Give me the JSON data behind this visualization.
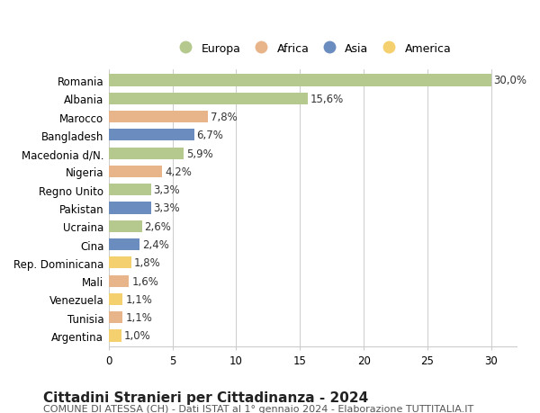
{
  "categories": [
    "Romania",
    "Albania",
    "Marocco",
    "Bangladesh",
    "Macedonia d/N.",
    "Nigeria",
    "Regno Unito",
    "Pakistan",
    "Ucraina",
    "Cina",
    "Rep. Dominicana",
    "Mali",
    "Venezuela",
    "Tunisia",
    "Argentina"
  ],
  "values": [
    30.0,
    15.6,
    7.8,
    6.7,
    5.9,
    4.2,
    3.3,
    3.3,
    2.6,
    2.4,
    1.8,
    1.6,
    1.1,
    1.1,
    1.0
  ],
  "labels": [
    "30,0%",
    "15,6%",
    "7,8%",
    "6,7%",
    "5,9%",
    "4,2%",
    "3,3%",
    "3,3%",
    "2,6%",
    "2,4%",
    "1,8%",
    "1,6%",
    "1,1%",
    "1,1%",
    "1,0%"
  ],
  "continents": [
    "Europa",
    "Europa",
    "Africa",
    "Asia",
    "Europa",
    "Africa",
    "Europa",
    "Asia",
    "Europa",
    "Asia",
    "America",
    "Africa",
    "America",
    "Africa",
    "America"
  ],
  "colors": {
    "Europa": "#b5c98e",
    "Africa": "#e8b48a",
    "Asia": "#6b8cbf",
    "America": "#f5d06e"
  },
  "legend_order": [
    "Europa",
    "Africa",
    "Asia",
    "America"
  ],
  "title": "Cittadini Stranieri per Cittadinanza - 2024",
  "subtitle": "COMUNE DI ATESSA (CH) - Dati ISTAT al 1° gennaio 2024 - Elaborazione TUTTITALIA.IT",
  "xlim": [
    0,
    32
  ],
  "xticks": [
    0,
    5,
    10,
    15,
    20,
    25,
    30
  ],
  "background_color": "#ffffff",
  "grid_color": "#cccccc",
  "bar_height": 0.65,
  "title_fontsize": 11,
  "subtitle_fontsize": 8,
  "tick_fontsize": 8.5,
  "label_fontsize": 8.5,
  "legend_fontsize": 9
}
